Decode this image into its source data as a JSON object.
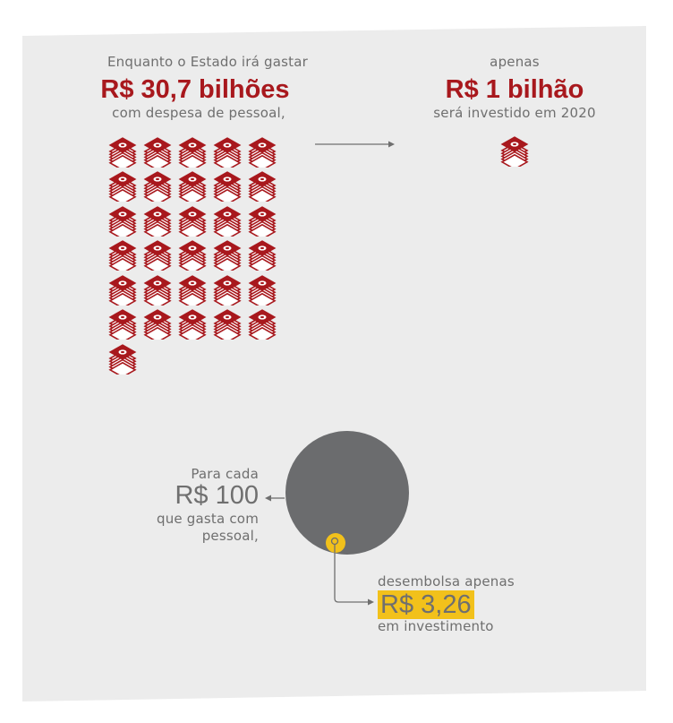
{
  "top_left": {
    "line1": "Enquanto o Estado irá gastar",
    "amount": "R$ 30,7 bilhões",
    "line3": "com despesa de pessoal,"
  },
  "top_right": {
    "line1": "apenas",
    "amount": "R$ 1 bilhão",
    "line3": "será investido em 2020"
  },
  "bottom_left": {
    "line1": "Para cada",
    "amount": "R$ 100",
    "line3": "que gasta com",
    "line4": "pessoal,"
  },
  "bottom_right": {
    "line1": "desembolsa apenas",
    "amount": "R$ 3,26",
    "line3": "em investimento"
  },
  "icons": {
    "money_stack_count_left": 31,
    "money_stack_count_right": 1,
    "money_icon": "money-stack-icon"
  },
  "colors": {
    "panel": "#ececec",
    "red": "#a8181d",
    "gray_circle": "#6b6c6e",
    "yellow": "#f2c11b",
    "text": "#6f6f6f"
  }
}
